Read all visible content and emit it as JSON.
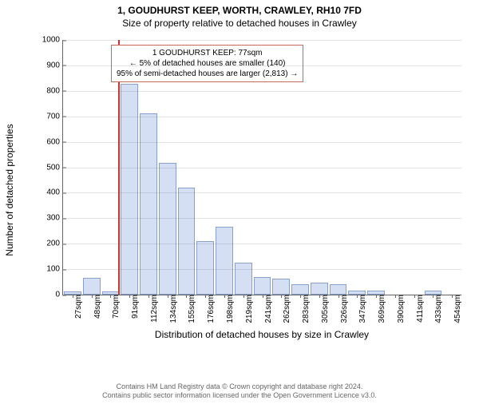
{
  "titles": {
    "main": "1, GOUDHURST KEEP, WORTH, CRAWLEY, RH10 7FD",
    "sub": "Size of property relative to detached houses in Crawley"
  },
  "chart": {
    "type": "histogram",
    "y_label": "Number of detached properties",
    "x_label": "Distribution of detached houses by size in Crawley",
    "ylim_max": 1000,
    "y_ticks": [
      0,
      100,
      200,
      300,
      400,
      500,
      600,
      700,
      800,
      900,
      1000
    ],
    "x_categories": [
      "27sqm",
      "48sqm",
      "70sqm",
      "91sqm",
      "112sqm",
      "134sqm",
      "155sqm",
      "176sqm",
      "198sqm",
      "219sqm",
      "241sqm",
      "262sqm",
      "283sqm",
      "305sqm",
      "326sqm",
      "347sqm",
      "369sqm",
      "390sqm",
      "411sqm",
      "433sqm",
      "454sqm"
    ],
    "values": [
      7,
      60,
      5,
      820,
      705,
      510,
      415,
      205,
      260,
      120,
      62,
      58,
      35,
      40,
      35,
      8,
      8,
      0,
      0,
      8,
      0
    ],
    "bar_fill": "#d5dff3",
    "bar_stroke": "#8aa0cc",
    "grid_color": "#666666",
    "marker_line": {
      "position_index": 2.4,
      "color": "#cc3333"
    },
    "annotation": {
      "border_color": "#c56a5a",
      "line1": "1 GOUDHURST KEEP: 77sqm",
      "line2": "← 5% of detached houses are smaller (140)",
      "line3": "95% of semi-detached houses are larger (2,813) →"
    }
  },
  "footer": {
    "line1": "Contains HM Land Registry data © Crown copyright and database right 2024.",
    "line2": "Contains public sector information licensed under the Open Government Licence v3.0."
  }
}
